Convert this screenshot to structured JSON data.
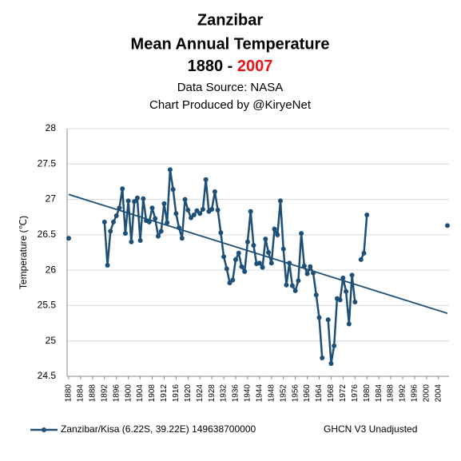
{
  "chart_data": {
    "type": "line",
    "title": "Zanzibar",
    "subtitle": "Mean Annual Temperature",
    "period": {
      "start": "1880 -",
      "end": "2007",
      "end_color": "#e8141c"
    },
    "source": "Data Source: NASA",
    "credit": "Chart Produced by @KiryeNet",
    "y_label": "Temperature (℃)",
    "note": "GHCN V3 Unadjusted",
    "xlim": [
      1880,
      2007
    ],
    "xticks": [
      1880,
      1884,
      1888,
      1892,
      1896,
      1900,
      1904,
      1908,
      1912,
      1916,
      1920,
      1924,
      1928,
      1932,
      1936,
      1940,
      1944,
      1948,
      1952,
      1956,
      1960,
      1964,
      1968,
      1972,
      1976,
      1980,
      1984,
      1988,
      1992,
      1996,
      2000,
      2004
    ],
    "ylim": [
      24.5,
      28
    ],
    "yticks": [
      24.5,
      25,
      25.5,
      26,
      26.5,
      27,
      27.5,
      28
    ],
    "grid": true,
    "series": [
      {
        "name": "Zanzibar/Kisa (6.22S, 39.22E) 149638700000",
        "color": "#1d4f77",
        "x": [
          1880,
          1881,
          1892,
          1893,
          1894,
          1895,
          1896,
          1897,
          1898,
          1899,
          1900,
          1901,
          1902,
          1903,
          1904,
          1905,
          1906,
          1907,
          1908,
          1909,
          1910,
          1911,
          1912,
          1913,
          1914,
          1915,
          1916,
          1917,
          1918,
          1919,
          1920,
          1921,
          1922,
          1923,
          1924,
          1925,
          1926,
          1927,
          1928,
          1929,
          1930,
          1931,
          1932,
          1933,
          1934,
          1935,
          1936,
          1937,
          1938,
          1939,
          1940,
          1941,
          1942,
          1943,
          1944,
          1945,
          1946,
          1947,
          1948,
          1949,
          1950,
          1951,
          1952,
          1953,
          1954,
          1955,
          1956,
          1957,
          1958,
          1959,
          1960,
          1961,
          1962,
          1963,
          1964,
          1965,
          1966,
          1967,
          1968,
          1969,
          1970,
          1971,
          1972,
          1973,
          1974,
          1975,
          1976,
          1977,
          1978,
          1979,
          1980,
          1981,
          2007
        ],
        "values": [
          26.45,
          null,
          26.68,
          26.07,
          26.55,
          26.68,
          26.77,
          26.88,
          27.15,
          26.52,
          26.98,
          26.4,
          26.97,
          27.02,
          26.42,
          27.01,
          26.7,
          26.68,
          26.88,
          26.73,
          26.48,
          26.55,
          26.94,
          26.67,
          27.42,
          27.14,
          26.8,
          26.6,
          26.45,
          27.0,
          26.85,
          26.74,
          26.78,
          26.84,
          26.8,
          26.86,
          27.28,
          26.83,
          26.86,
          27.11,
          26.85,
          26.53,
          26.19,
          26.02,
          25.82,
          25.86,
          26.15,
          26.24,
          26.05,
          25.98,
          26.4,
          26.83,
          26.35,
          26.09,
          26.1,
          26.04,
          26.44,
          26.25,
          26.1,
          26.58,
          26.5,
          26.98,
          26.3,
          25.79,
          26.1,
          25.78,
          25.71,
          25.85,
          26.52,
          26.06,
          25.95,
          26.05,
          25.96,
          25.65,
          25.33,
          24.76,
          null,
          25.3,
          24.68,
          24.93,
          25.6,
          25.58,
          25.89,
          25.7,
          25.24,
          25.93,
          25.55,
          null,
          26.15,
          26.24,
          26.78,
          null,
          26.63
        ]
      }
    ],
    "trendline": {
      "x": [
        1880,
        2007
      ],
      "values": [
        27.07,
        25.39
      ],
      "color": "#1d4f77"
    }
  }
}
